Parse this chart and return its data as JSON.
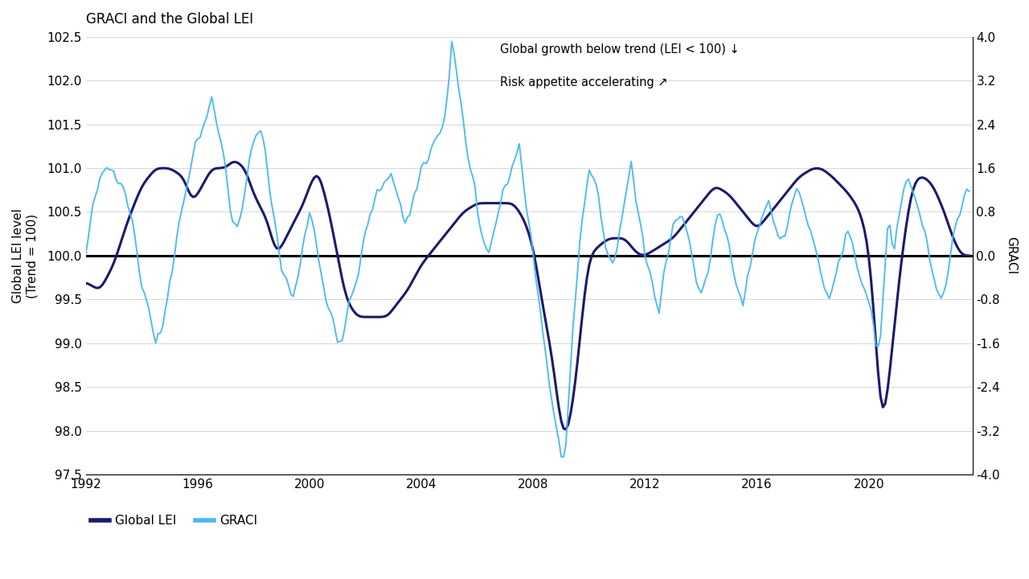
{
  "title": "GRACI and the Global LEI",
  "ylabel_left": "Global LEI level\n(Trend = 100)",
  "ylabel_right": "GRACI",
  "lei_color": "#1a1a6e",
  "graci_color": "#4ab8f0",
  "zero_line_color": "#000000",
  "background_color": "#ffffff",
  "ylim_left": [
    97.5,
    102.5
  ],
  "ylim_right": [
    -4.0,
    4.0
  ],
  "yticks_left": [
    97.5,
    98.0,
    98.5,
    99.0,
    99.5,
    100.0,
    100.5,
    101.0,
    101.5,
    102.0,
    102.5
  ],
  "yticks_right": [
    -4.0,
    -3.2,
    -2.4,
    -1.6,
    -0.8,
    0.0,
    0.8,
    1.6,
    2.4,
    3.2,
    4.0
  ],
  "annotation1": "Global growth below trend (LEI < 100) ↓",
  "annotation2": "Risk appetite accelerating ↗",
  "legend_lei": "Global LEI",
  "legend_graci": "GRACI",
  "x_start_year": 1992,
  "x_end_year": 2023
}
